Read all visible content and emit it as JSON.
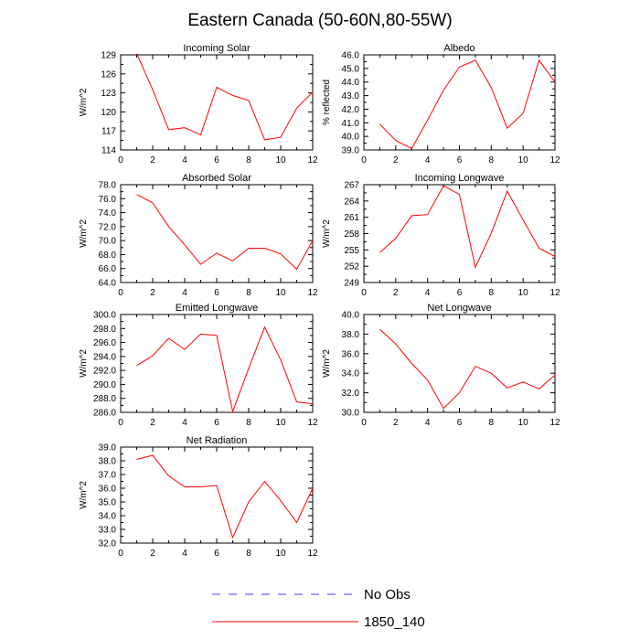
{
  "title": "Eastern Canada (50-60N,80-55W)",
  "colors": {
    "model": "#ff0000",
    "obs": "#3d3df5",
    "axis": "#000000"
  },
  "chart_data": [
    {
      "type": "line",
      "title": "Incoming Solar",
      "ylabel": "W/m^2",
      "x": [
        1,
        2,
        3,
        4,
        5,
        6,
        7,
        8,
        9,
        10,
        11,
        12
      ],
      "xlim": [
        0,
        12
      ],
      "xticks": [
        "0",
        "2",
        "4",
        "6",
        "8",
        "10",
        "12"
      ],
      "ylim": [
        114,
        129
      ],
      "yticks": [
        "114",
        "117",
        "120",
        "123",
        "126",
        "129"
      ],
      "series": [
        {
          "name": "1850_140",
          "values": [
            129.2,
            123.5,
            117.2,
            117.5,
            116.4,
            123.9,
            122.6,
            121.8,
            115.6,
            116.0,
            120.6,
            123.1
          ]
        }
      ]
    },
    {
      "type": "line",
      "title": "Albedo",
      "ylabel": "% reflected",
      "x": [
        1,
        2,
        3,
        4,
        5,
        6,
        7,
        8,
        9,
        10,
        11,
        12
      ],
      "xlim": [
        0,
        12
      ],
      "xticks": [
        "0",
        "2",
        "4",
        "6",
        "8",
        "10",
        "12"
      ],
      "ylim": [
        39,
        46
      ],
      "yticks": [
        "39.0",
        "40.0",
        "41.0",
        "42.0",
        "43.0",
        "44.0",
        "45.0",
        "46.0"
      ],
      "series": [
        {
          "name": "1850_140",
          "values": [
            40.9,
            39.7,
            39.1,
            41.2,
            43.4,
            45.1,
            45.6,
            43.6,
            40.6,
            41.7,
            45.6,
            44.0
          ]
        }
      ]
    },
    {
      "type": "line",
      "title": "Absorbed Solar",
      "ylabel": "W/m^2",
      "x": [
        1,
        2,
        3,
        4,
        5,
        6,
        7,
        8,
        9,
        10,
        11,
        12
      ],
      "xlim": [
        0,
        12
      ],
      "xticks": [
        "0",
        "2",
        "4",
        "6",
        "8",
        "10",
        "12"
      ],
      "ylim": [
        64,
        78
      ],
      "yticks": [
        "64.0",
        "66.0",
        "68.0",
        "70.0",
        "72.0",
        "74.0",
        "76.0",
        "78.0"
      ],
      "series": [
        {
          "name": "1850_140",
          "values": [
            76.6,
            75.4,
            72.0,
            69.4,
            66.6,
            68.2,
            67.1,
            68.9,
            68.9,
            68.1,
            65.9,
            70.0
          ]
        }
      ]
    },
    {
      "type": "line",
      "title": "Incoming Longwave",
      "ylabel": "W/m^2",
      "x": [
        1,
        2,
        3,
        4,
        5,
        6,
        7,
        8,
        9,
        10,
        11,
        12
      ],
      "xlim": [
        0,
        12
      ],
      "xticks": [
        "0",
        "2",
        "4",
        "6",
        "8",
        "10",
        "12"
      ],
      "ylim": [
        249,
        267
      ],
      "yticks": [
        "249",
        "252",
        "255",
        "258",
        "261",
        "264",
        "267"
      ],
      "series": [
        {
          "name": "1850_140",
          "values": [
            254.5,
            257.1,
            261.3,
            261.5,
            266.8,
            265.2,
            251.8,
            258.1,
            265.8,
            260.5,
            255.3,
            253.8
          ]
        }
      ]
    },
    {
      "type": "line",
      "title": "Emitted Longwave",
      "ylabel": "W/m^2",
      "x": [
        1,
        2,
        3,
        4,
        5,
        6,
        7,
        8,
        9,
        10,
        11,
        12
      ],
      "xlim": [
        0,
        12
      ],
      "xticks": [
        "0",
        "2",
        "4",
        "6",
        "8",
        "10",
        "12"
      ],
      "ylim": [
        286,
        300
      ],
      "yticks": [
        "286.0",
        "288.0",
        "290.0",
        "292.0",
        "294.0",
        "296.0",
        "298.0",
        "300.0"
      ],
      "series": [
        {
          "name": "1850_140",
          "values": [
            292.7,
            294.1,
            296.6,
            295.0,
            297.2,
            297.0,
            286.1,
            292.3,
            298.2,
            293.5,
            287.5,
            287.2
          ]
        }
      ]
    },
    {
      "type": "line",
      "title": "Net Longwave",
      "ylabel": "W/m^2",
      "x": [
        1,
        2,
        3,
        4,
        5,
        6,
        7,
        8,
        9,
        10,
        11,
        12
      ],
      "xlim": [
        0,
        12
      ],
      "xticks": [
        "0",
        "2",
        "4",
        "6",
        "8",
        "10",
        "12"
      ],
      "ylim": [
        30,
        40
      ],
      "yticks": [
        "30.0",
        "32.0",
        "34.0",
        "36.0",
        "38.0",
        "40.0"
      ],
      "series": [
        {
          "name": "1850_140",
          "values": [
            38.5,
            37.0,
            35.0,
            33.3,
            30.4,
            32.0,
            34.7,
            34.0,
            32.5,
            33.1,
            32.4,
            33.8
          ]
        }
      ]
    },
    {
      "type": "line",
      "title": "Net Radiation",
      "ylabel": "W/m^2",
      "x": [
        1,
        2,
        3,
        4,
        5,
        6,
        7,
        8,
        9,
        10,
        11,
        12
      ],
      "xlim": [
        0,
        12
      ],
      "xticks": [
        "0",
        "2",
        "4",
        "6",
        "8",
        "10",
        "12"
      ],
      "ylim": [
        32,
        39
      ],
      "yticks": [
        "32.0",
        "33.0",
        "34.0",
        "35.0",
        "36.0",
        "37.0",
        "38.0",
        "39.0"
      ],
      "series": [
        {
          "name": "1850_140",
          "values": [
            38.1,
            38.4,
            36.9,
            36.1,
            36.1,
            36.2,
            32.4,
            35.0,
            36.5,
            35.1,
            33.5,
            36.0
          ]
        }
      ]
    }
  ],
  "legend": [
    {
      "label": "No Obs",
      "style": "dashed",
      "color": "#3d3df5"
    },
    {
      "label": "1850_140",
      "style": "solid",
      "color": "#ff0000"
    }
  ]
}
